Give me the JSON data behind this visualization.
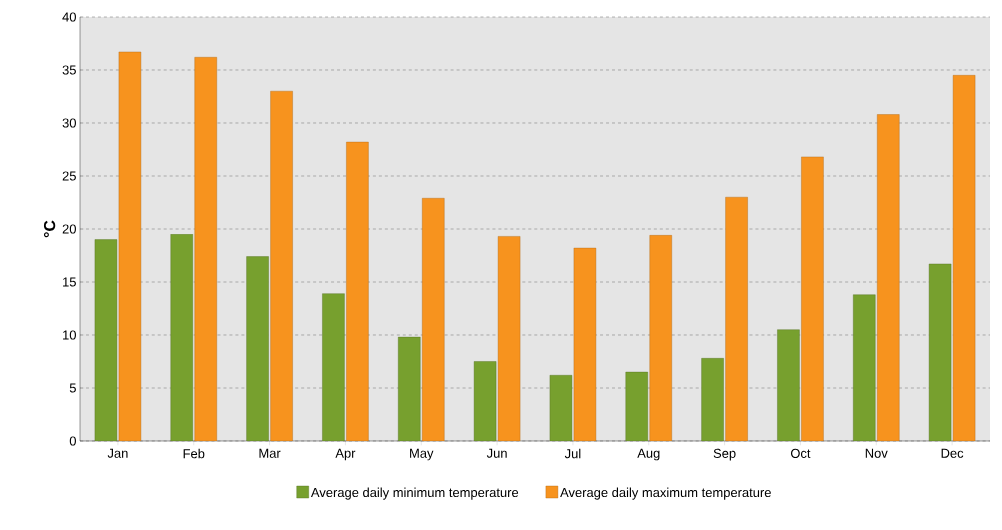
{
  "chart_data": {
    "type": "bar",
    "ylabel": "°C",
    "categories": [
      "Jan",
      "Feb",
      "Mar",
      "Apr",
      "May",
      "Jun",
      "Jul",
      "Aug",
      "Sep",
      "Oct",
      "Nov",
      "Dec"
    ],
    "series": [
      {
        "name": "Average daily minimum temperature",
        "color": "#77a02e",
        "values": [
          19.0,
          19.5,
          17.4,
          13.9,
          9.8,
          7.5,
          6.2,
          6.5,
          7.8,
          10.5,
          13.8,
          16.7
        ]
      },
      {
        "name": "Average daily maximum temperature",
        "color": "#f7931e",
        "values": [
          36.7,
          36.2,
          33.0,
          28.2,
          22.9,
          19.3,
          18.2,
          19.4,
          23.0,
          26.8,
          30.8,
          34.5
        ]
      }
    ],
    "ylim": [
      0,
      40
    ],
    "yticks": [
      0,
      5,
      10,
      15,
      20,
      25,
      30,
      35,
      40
    ],
    "grid": "y",
    "legend": "bottom"
  }
}
